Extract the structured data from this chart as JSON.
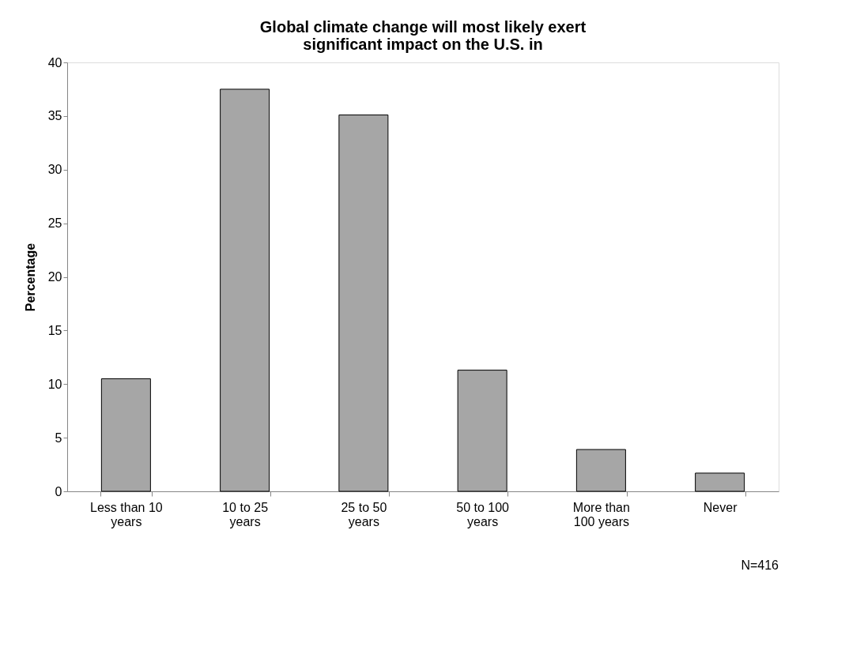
{
  "chart_data": {
    "type": "bar",
    "title": "Global climate change will most likely exert\nsignificant impact on the U.S. in",
    "ylabel": "Percentage",
    "categories": [
      "Less than 10\nyears",
      "10 to 25\nyears",
      "25 to 50\nyears",
      "50 to 100\nyears",
      "More than\n100 years",
      "Never"
    ],
    "values": [
      10.5,
      37.5,
      35.1,
      11.3,
      3.9,
      1.7
    ],
    "color": "#a6a6a6",
    "ylim": [
      0,
      40
    ],
    "yticks": [
      0,
      5,
      10,
      15,
      20,
      25,
      30,
      35,
      40
    ],
    "grid": false,
    "annotations": [
      "N=416"
    ]
  }
}
